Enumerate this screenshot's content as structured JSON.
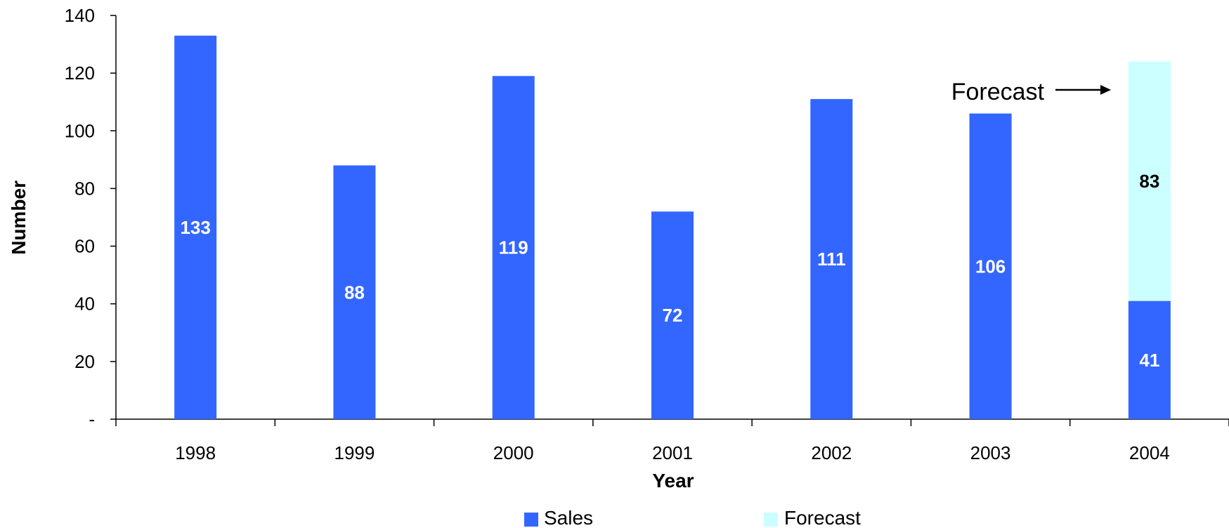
{
  "chart_data": {
    "type": "bar",
    "stacked": true,
    "title": "",
    "xlabel": "Year",
    "ylabel": "Number",
    "ylim": [
      0,
      140
    ],
    "y_ticks": [
      "-",
      "20",
      "40",
      "60",
      "80",
      "100",
      "120",
      "140"
    ],
    "y_tick_values": [
      0,
      20,
      40,
      60,
      80,
      100,
      120,
      140
    ],
    "categories": [
      "1998",
      "1999",
      "2000",
      "2001",
      "2002",
      "2003",
      "2004"
    ],
    "series": [
      {
        "name": "Sales",
        "color": "#3366FF",
        "values": [
          133,
          88,
          119,
          72,
          111,
          106,
          41
        ],
        "label_color": "#FFFFFF"
      },
      {
        "name": "Forecast",
        "color": "#CCFFFF",
        "values": [
          0,
          0,
          0,
          0,
          0,
          0,
          83
        ],
        "label_color": "#000000"
      }
    ],
    "legend": {
      "position": "bottom",
      "entries": [
        "Sales",
        "Forecast"
      ]
    },
    "annotation": {
      "text": "Forecast",
      "arrow": "right",
      "points_to": "2004"
    },
    "grid": false
  }
}
